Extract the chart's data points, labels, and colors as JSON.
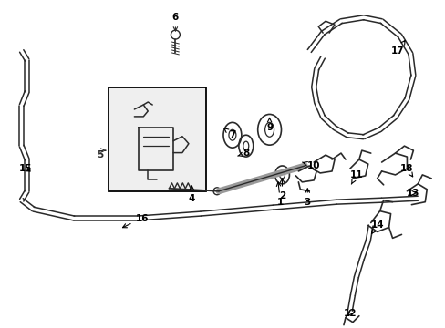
{
  "bg_color": "#ffffff",
  "line_color": "#2a2a2a",
  "label_fontsize": 7.5,
  "label_color": "#000000",
  "box_color": "#efefef",
  "box_edge_color": "#000000",
  "figsize": [
    4.89,
    3.6
  ],
  "dpi": 100
}
